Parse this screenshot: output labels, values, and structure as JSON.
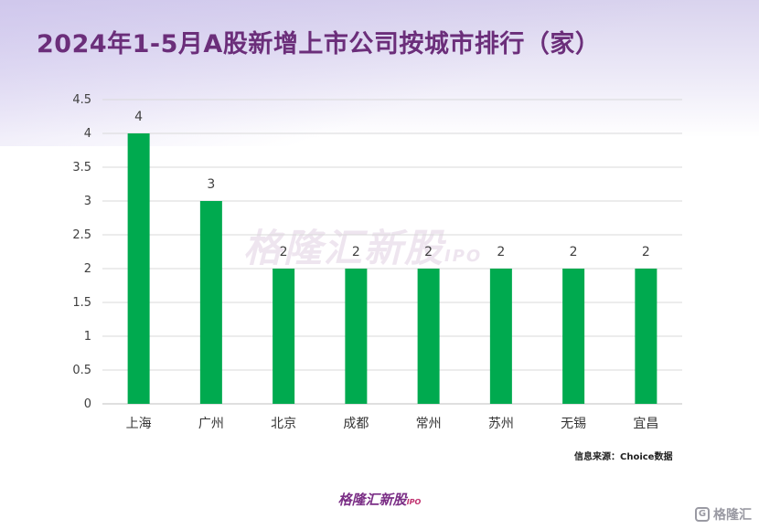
{
  "title": "2024年1-5月A股新增上市公司按城市排行（家）",
  "source_note": "信息来源：Choice数据",
  "brand": {
    "name": "格隆汇新股",
    "suffix": "IPO",
    "corner_name": "格隆汇",
    "corner_icon": "G"
  },
  "colors": {
    "bar": "#00aa4f",
    "title": "#6b2e7a",
    "grid": "#d9d9d9"
  },
  "chart_data": {
    "type": "bar",
    "categories": [
      "上海",
      "广州",
      "北京",
      "成都",
      "常州",
      "苏州",
      "无锡",
      "宜昌"
    ],
    "values": [
      4,
      3,
      2,
      2,
      2,
      2,
      2,
      2
    ],
    "title": "2024年1-5月A股新增上市公司按城市排行（家）",
    "xlabel": "",
    "ylabel": "",
    "ylim": [
      0,
      4.5
    ],
    "yticks": [
      "0",
      "0.5",
      "1",
      "1.5",
      "2",
      "2.5",
      "3",
      "3.5",
      "4",
      "4.5"
    ],
    "data_labels": [
      "4",
      "3",
      "2",
      "2",
      "2",
      "2",
      "2",
      "2"
    ],
    "grid": true,
    "legend": "none"
  }
}
